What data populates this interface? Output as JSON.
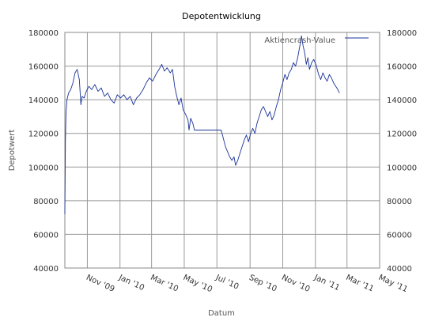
{
  "chart_data": {
    "type": "line",
    "title": "Depotentwicklung",
    "xlabel": "Datum",
    "ylabel": "Depotwert",
    "ylim": [
      40000,
      180000
    ],
    "y_ticks": [
      40000,
      60000,
      80000,
      100000,
      120000,
      140000,
      160000,
      180000
    ],
    "y_tick_labels": [
      "40000",
      "60000",
      "80000",
      "100000",
      "120000",
      "140000",
      "160000",
      "180000"
    ],
    "right_axis_mirror": true,
    "xlim": [
      "2009-09-20",
      "2011-05-01"
    ],
    "x_ticks": [
      "2009-11-01",
      "2010-01-01",
      "2010-03-01",
      "2010-05-01",
      "2010-07-01",
      "2010-09-01",
      "2010-11-01",
      "2011-01-01",
      "2011-03-01",
      "2011-05-01"
    ],
    "x_tick_labels": [
      "Nov '09",
      "Jan '10",
      "Mar '10",
      "May '10",
      "Jul '10",
      "Sep '10",
      "Nov '10",
      "Jan '11",
      "Mar '11",
      "May '11"
    ],
    "grid": true,
    "legend_position": "top-right",
    "series": [
      {
        "name": "Aktiencrash-Value",
        "color": "#1a3399",
        "points": [
          [
            "2009-09-20",
            72000
          ],
          [
            "2009-09-21",
            115000
          ],
          [
            "2009-09-22",
            132000
          ],
          [
            "2009-09-24",
            140000
          ],
          [
            "2009-09-27",
            144000
          ],
          [
            "2009-10-01",
            146000
          ],
          [
            "2009-10-05",
            150000
          ],
          [
            "2009-10-09",
            156000
          ],
          [
            "2009-10-13",
            158000
          ],
          [
            "2009-10-17",
            152000
          ],
          [
            "2009-10-20",
            137000
          ],
          [
            "2009-10-22",
            142000
          ],
          [
            "2009-10-26",
            141000
          ],
          [
            "2009-10-30",
            145000
          ],
          [
            "2009-11-04",
            148000
          ],
          [
            "2009-11-09",
            146000
          ],
          [
            "2009-11-15",
            149000
          ],
          [
            "2009-11-21",
            145000
          ],
          [
            "2009-11-27",
            147000
          ],
          [
            "2009-12-03",
            142000
          ],
          [
            "2009-12-09",
            144000
          ],
          [
            "2009-12-15",
            140000
          ],
          [
            "2009-12-21",
            138000
          ],
          [
            "2009-12-27",
            143000
          ],
          [
            "2010-01-02",
            141000
          ],
          [
            "2010-01-08",
            143000
          ],
          [
            "2010-01-14",
            140000
          ],
          [
            "2010-01-20",
            142000
          ],
          [
            "2010-01-26",
            137000
          ],
          [
            "2010-02-01",
            141000
          ],
          [
            "2010-02-07",
            143000
          ],
          [
            "2010-02-13",
            146000
          ],
          [
            "2010-02-19",
            150000
          ],
          [
            "2010-02-25",
            153000
          ],
          [
            "2010-03-03",
            151000
          ],
          [
            "2010-03-09",
            155000
          ],
          [
            "2010-03-15",
            158000
          ],
          [
            "2010-03-20",
            161000
          ],
          [
            "2010-03-25",
            157000
          ],
          [
            "2010-03-30",
            159000
          ],
          [
            "2010-04-05",
            156000
          ],
          [
            "2010-04-09",
            158000
          ],
          [
            "2010-04-13",
            148000
          ],
          [
            "2010-04-17",
            142000
          ],
          [
            "2010-04-21",
            137000
          ],
          [
            "2010-04-25",
            141000
          ],
          [
            "2010-04-29",
            134000
          ],
          [
            "2010-05-04",
            131000
          ],
          [
            "2010-05-08",
            128000
          ],
          [
            "2010-05-10",
            122000
          ],
          [
            "2010-05-13",
            129000
          ],
          [
            "2010-05-17",
            126000
          ],
          [
            "2010-05-20",
            122000
          ],
          [
            "2010-06-01",
            122000
          ],
          [
            "2010-06-15",
            122000
          ],
          [
            "2010-07-01",
            122000
          ],
          [
            "2010-07-09",
            122000
          ],
          [
            "2010-07-13",
            117000
          ],
          [
            "2010-07-17",
            112000
          ],
          [
            "2010-07-21",
            109000
          ],
          [
            "2010-07-25",
            106000
          ],
          [
            "2010-07-29",
            104000
          ],
          [
            "2010-08-02",
            106000
          ],
          [
            "2010-08-05",
            101000
          ],
          [
            "2010-08-09",
            104000
          ],
          [
            "2010-08-13",
            108000
          ],
          [
            "2010-08-17",
            112000
          ],
          [
            "2010-08-21",
            116000
          ],
          [
            "2010-08-25",
            119000
          ],
          [
            "2010-08-29",
            115000
          ],
          [
            "2010-09-02",
            120000
          ],
          [
            "2010-09-06",
            123000
          ],
          [
            "2010-09-10",
            120000
          ],
          [
            "2010-09-14",
            126000
          ],
          [
            "2010-09-18",
            130000
          ],
          [
            "2010-09-22",
            134000
          ],
          [
            "2010-09-26",
            136000
          ],
          [
            "2010-09-30",
            133000
          ],
          [
            "2010-10-04",
            130000
          ],
          [
            "2010-10-08",
            133000
          ],
          [
            "2010-10-12",
            128000
          ],
          [
            "2010-10-16",
            131000
          ],
          [
            "2010-10-20",
            136000
          ],
          [
            "2010-10-24",
            140000
          ],
          [
            "2010-10-28",
            146000
          ],
          [
            "2010-11-01",
            150000
          ],
          [
            "2010-11-05",
            155000
          ],
          [
            "2010-11-09",
            152000
          ],
          [
            "2010-11-13",
            156000
          ],
          [
            "2010-11-17",
            158000
          ],
          [
            "2010-11-21",
            162000
          ],
          [
            "2010-11-25",
            160000
          ],
          [
            "2010-11-29",
            165000
          ],
          [
            "2010-12-03",
            172000
          ],
          [
            "2010-12-06",
            178000
          ],
          [
            "2010-12-09",
            172000
          ],
          [
            "2010-12-12",
            168000
          ],
          [
            "2010-12-15",
            161000
          ],
          [
            "2010-12-18",
            165000
          ],
          [
            "2010-12-21",
            158000
          ],
          [
            "2010-12-25",
            162000
          ],
          [
            "2010-12-29",
            164000
          ],
          [
            "2011-01-03",
            160000
          ],
          [
            "2011-01-07",
            155000
          ],
          [
            "2011-01-11",
            152000
          ],
          [
            "2011-01-15",
            156000
          ],
          [
            "2011-01-19",
            153000
          ],
          [
            "2011-01-23",
            151000
          ],
          [
            "2011-01-27",
            155000
          ],
          [
            "2011-01-31",
            153000
          ],
          [
            "2011-02-04",
            150000
          ],
          [
            "2011-02-08",
            148000
          ],
          [
            "2011-02-12",
            146000
          ],
          [
            "2011-02-15",
            144000
          ]
        ]
      }
    ]
  }
}
